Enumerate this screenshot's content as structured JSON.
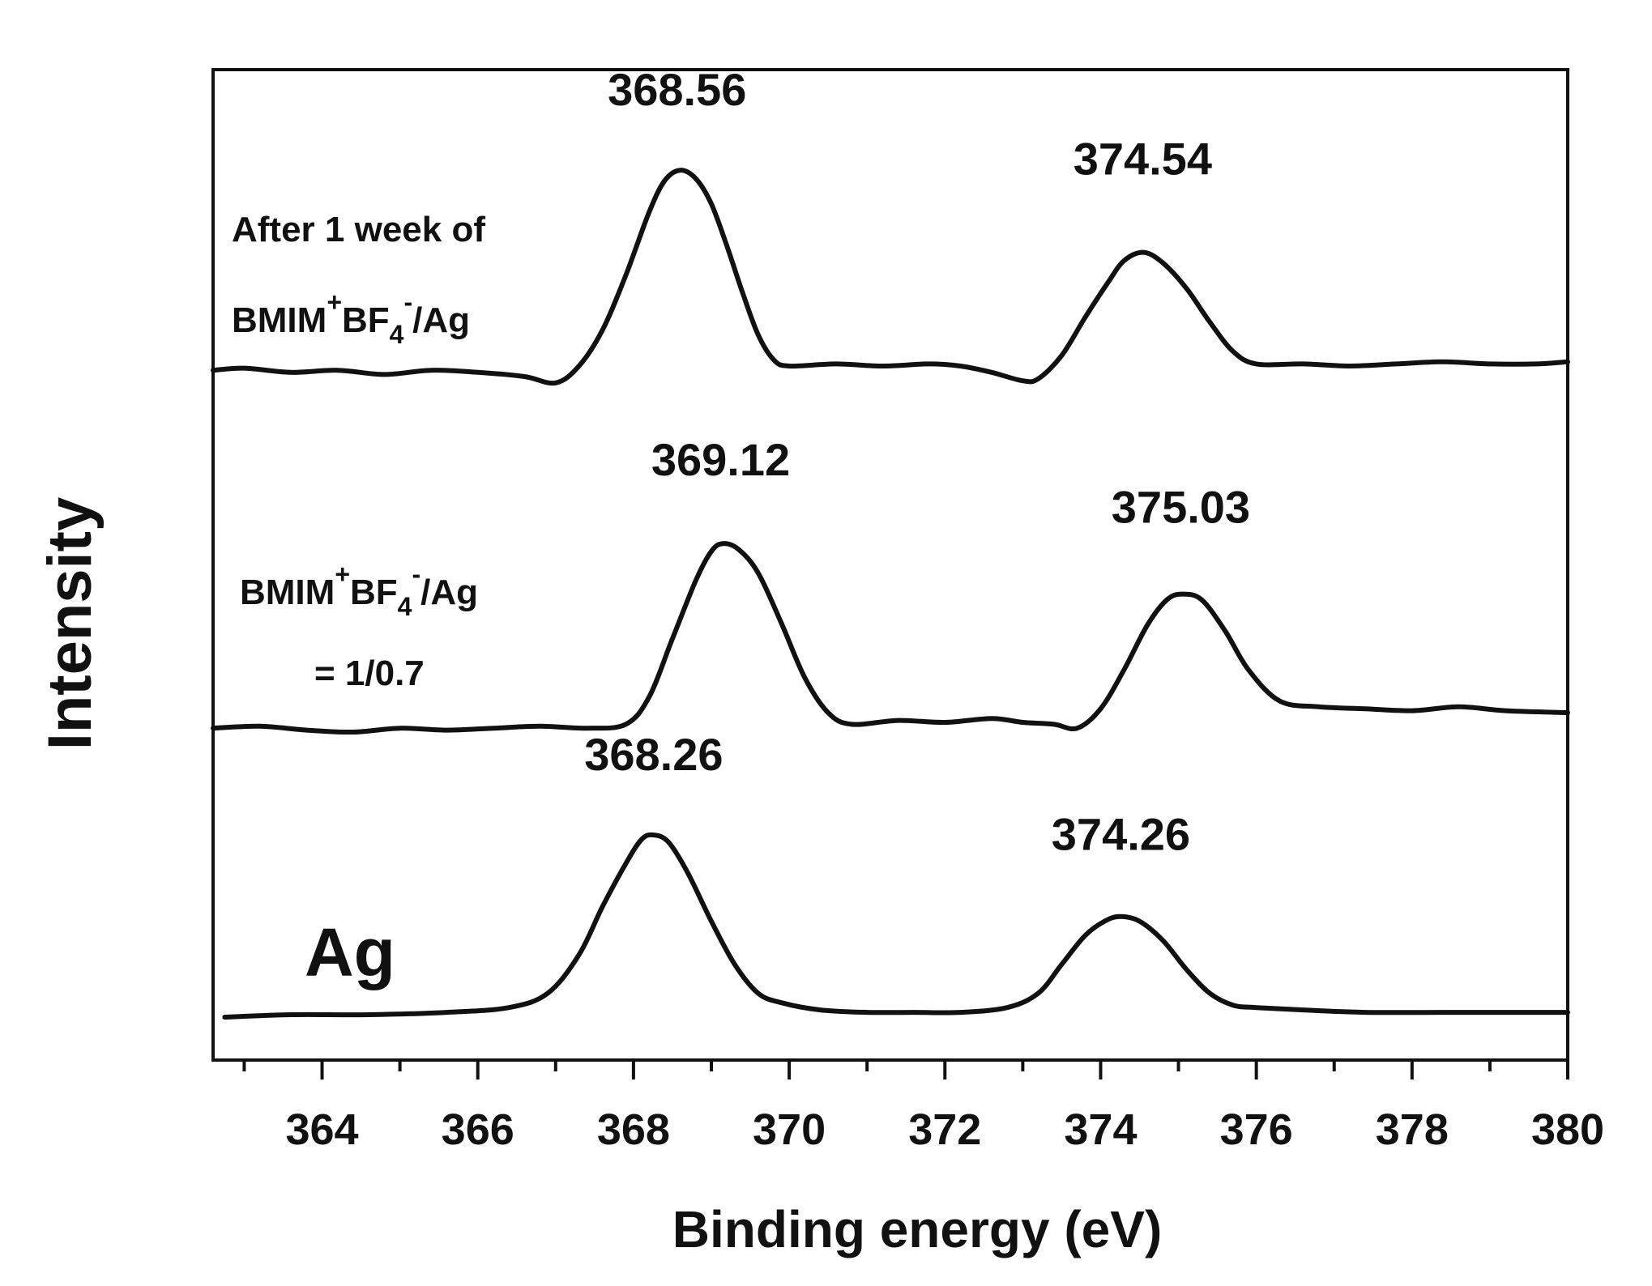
{
  "chart_data": {
    "type": "line",
    "xlabel": "Binding energy (eV)",
    "ylabel": "Intensity",
    "xlim": [
      362.6,
      380
    ],
    "major_ticks": [
      364,
      366,
      368,
      370,
      372,
      374,
      376,
      378,
      380
    ],
    "minor_ticks": [
      363,
      365,
      367,
      369,
      371,
      373,
      375,
      377,
      379
    ],
    "y_tick_labels": false,
    "grid": false,
    "series": [
      {
        "name": "After 1 week of BMIM+BF4-/Ag",
        "label_parts": {
          "line1": "After 1 week of",
          "main": "BMIM",
          "sup1": "+",
          "mid": "BF",
          "sub": "4",
          "sup2": "-",
          "tail": "/Ag"
        },
        "peaks": [
          368.56,
          374.54
        ],
        "peak_labels": [
          "368.56",
          "374.54"
        ],
        "x": [
          362.6,
          363.0,
          363.6,
          364.2,
          364.8,
          365.4,
          366.0,
          366.6,
          367.0,
          367.3,
          367.6,
          367.9,
          368.2,
          368.4,
          368.6,
          368.8,
          369.0,
          369.2,
          369.4,
          369.6,
          369.8,
          370.0,
          370.6,
          371.2,
          371.8,
          372.2,
          372.6,
          373.0,
          373.2,
          373.5,
          373.8,
          374.1,
          374.3,
          374.55,
          374.8,
          375.1,
          375.4,
          375.7,
          376.0,
          376.6,
          377.2,
          377.8,
          378.4,
          379.0,
          379.6,
          380.0
        ],
        "y": [
          0.03,
          0.04,
          0.02,
          0.03,
          0.01,
          0.03,
          0.02,
          0.0,
          -0.03,
          0.05,
          0.22,
          0.48,
          0.78,
          0.93,
          0.98,
          0.94,
          0.82,
          0.62,
          0.4,
          0.2,
          0.08,
          0.05,
          0.06,
          0.05,
          0.06,
          0.05,
          0.02,
          -0.02,
          -0.01,
          0.1,
          0.28,
          0.45,
          0.55,
          0.59,
          0.54,
          0.42,
          0.26,
          0.12,
          0.06,
          0.06,
          0.05,
          0.06,
          0.07,
          0.06,
          0.06,
          0.07
        ]
      },
      {
        "name": "BMIM+BF4-/Ag = 1/0.7",
        "label_parts": {
          "main": "BMIM",
          "sup1": "+",
          "mid": "BF",
          "sub": "4",
          "sup2": "-",
          "tail": "/Ag",
          "line2": "= 1/0.7"
        },
        "peaks": [
          369.12,
          375.03
        ],
        "peak_labels": [
          "369.12",
          "375.03"
        ],
        "x": [
          362.6,
          363.2,
          363.8,
          364.4,
          365.0,
          365.6,
          366.2,
          366.8,
          367.4,
          367.9,
          368.2,
          368.5,
          368.8,
          369.0,
          369.15,
          369.35,
          369.6,
          369.9,
          370.2,
          370.5,
          370.8,
          371.4,
          372.0,
          372.6,
          373.0,
          373.4,
          373.7,
          374.0,
          374.3,
          374.6,
          374.85,
          375.05,
          375.3,
          375.6,
          375.9,
          376.3,
          376.8,
          377.4,
          378.0,
          378.6,
          379.2,
          380.0
        ],
        "y": [
          0.02,
          0.03,
          0.01,
          0.0,
          0.02,
          0.01,
          0.02,
          0.03,
          0.02,
          0.04,
          0.18,
          0.48,
          0.78,
          0.93,
          0.97,
          0.94,
          0.82,
          0.56,
          0.28,
          0.1,
          0.04,
          0.06,
          0.05,
          0.07,
          0.05,
          0.04,
          0.02,
          0.12,
          0.32,
          0.55,
          0.68,
          0.71,
          0.68,
          0.52,
          0.32,
          0.16,
          0.13,
          0.12,
          0.11,
          0.13,
          0.11,
          0.1
        ]
      },
      {
        "name": "Ag",
        "label_parts": {
          "main": "Ag"
        },
        "peaks": [
          368.26,
          374.26
        ],
        "peak_labels": [
          "368.26",
          "374.26"
        ],
        "x": [
          362.75,
          363.6,
          364.6,
          365.6,
          366.4,
          366.9,
          367.3,
          367.6,
          367.9,
          368.1,
          368.25,
          368.45,
          368.7,
          369.0,
          369.3,
          369.6,
          369.9,
          370.4,
          371.0,
          371.6,
          372.2,
          372.8,
          373.2,
          373.5,
          373.8,
          374.05,
          374.25,
          374.5,
          374.8,
          375.1,
          375.4,
          375.7,
          376.0,
          376.6,
          377.4,
          378.4,
          379.4,
          380.0
        ],
        "y": [
          0.0,
          0.01,
          0.01,
          0.02,
          0.04,
          0.1,
          0.26,
          0.46,
          0.64,
          0.74,
          0.76,
          0.73,
          0.6,
          0.4,
          0.22,
          0.1,
          0.06,
          0.03,
          0.02,
          0.02,
          0.02,
          0.04,
          0.1,
          0.22,
          0.34,
          0.4,
          0.42,
          0.4,
          0.32,
          0.2,
          0.1,
          0.05,
          0.04,
          0.03,
          0.02,
          0.02,
          0.02,
          0.02
        ]
      }
    ]
  }
}
